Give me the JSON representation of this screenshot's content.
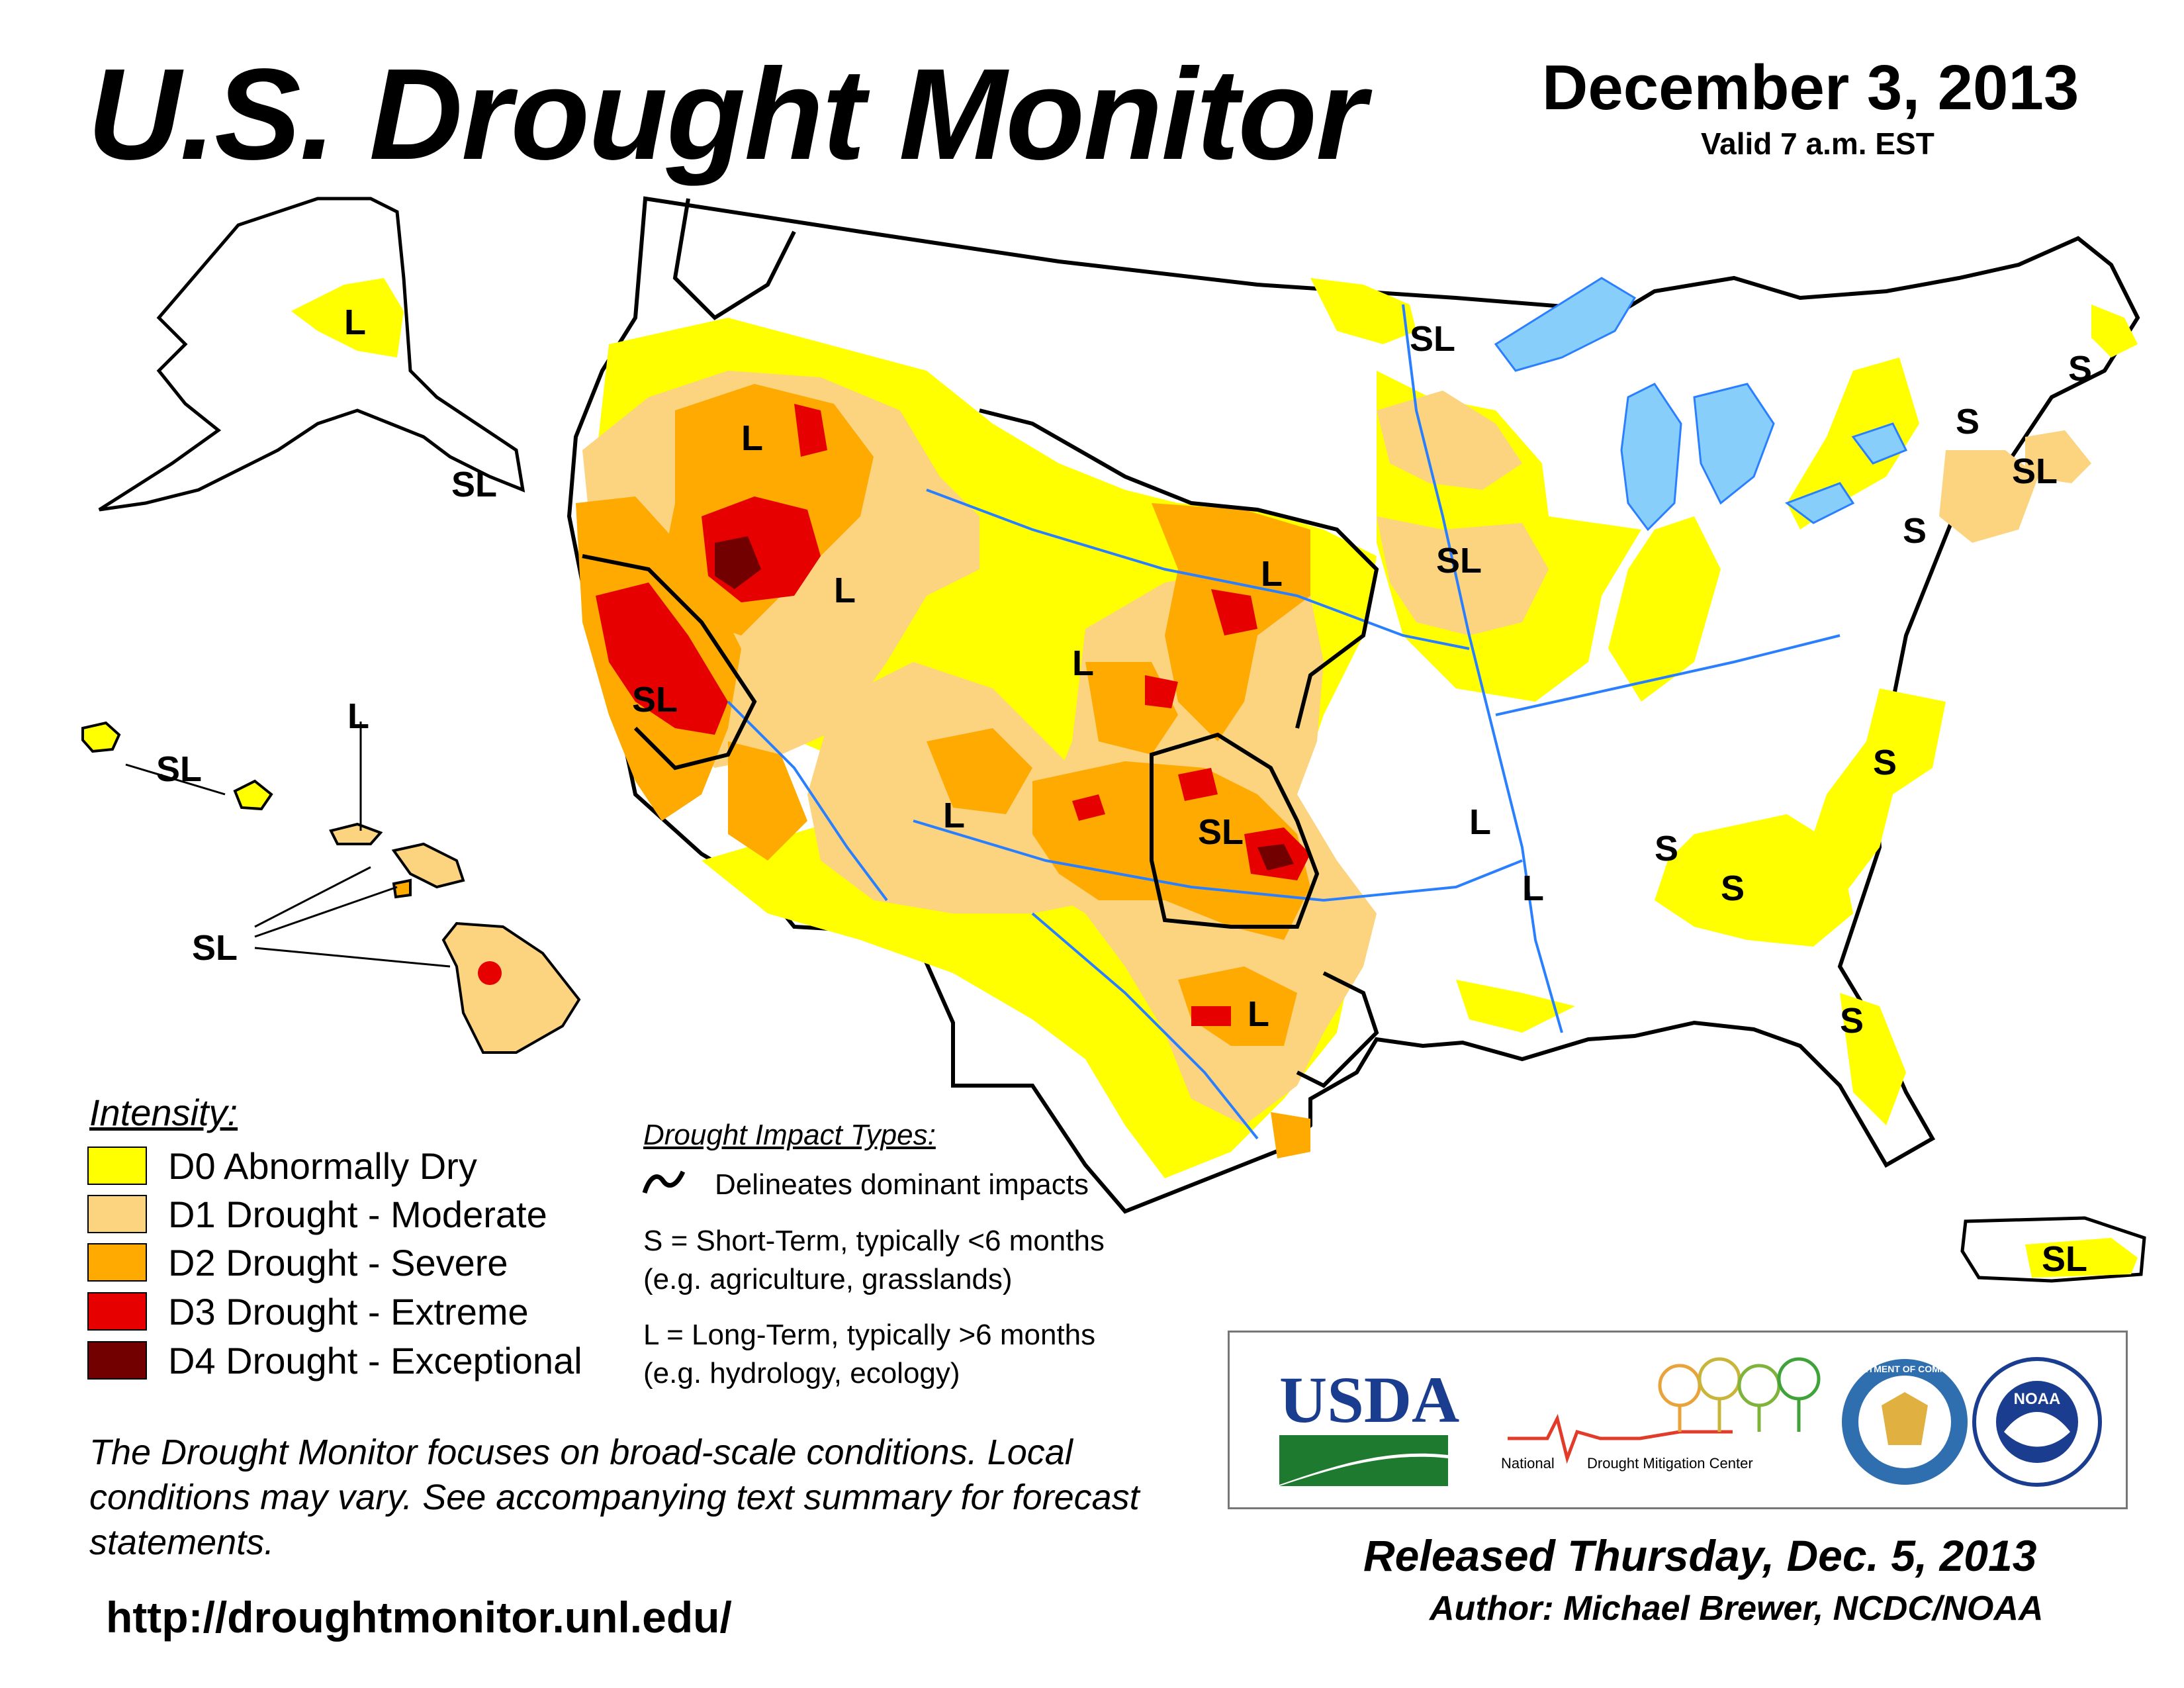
{
  "header": {
    "title": "U.S. Drought Monitor",
    "date": "December 3, 2013",
    "valid": "Valid 7 a.m. EST"
  },
  "map": {
    "impact_labels": [
      "L",
      "SL",
      "SL",
      "L",
      "L",
      "SL",
      "SL",
      "L",
      "L",
      "SL",
      "SL",
      "L",
      "L",
      "L",
      "L",
      "S",
      "S",
      "SL",
      "S",
      "S",
      "S",
      "S",
      "SL",
      "L",
      "S",
      "SL"
    ],
    "colors": {
      "D0": "#ffff00",
      "D1": "#fcd37f",
      "D2": "#ffaa00",
      "D3": "#e60000",
      "D4": "#730000",
      "water": "#87cefa",
      "rivers": "#2a7fff",
      "borders": "#000000",
      "counties": "#9a9a9a"
    }
  },
  "legend": {
    "title": "Intensity:",
    "items": [
      {
        "label": "D0 Abnormally Dry",
        "color": "#ffff00"
      },
      {
        "label": "D1 Drought - Moderate",
        "color": "#fcd37f"
      },
      {
        "label": "D2 Drought - Severe",
        "color": "#ffaa00"
      },
      {
        "label": "D3 Drought - Extreme",
        "color": "#e60000"
      },
      {
        "label": "D4 Drought - Exceptional",
        "color": "#730000"
      }
    ]
  },
  "impacts": {
    "title": "Drought Impact Types:",
    "delineates": "Delineates dominant impacts",
    "short_1": "S = Short-Term, typically <6 months",
    "short_2": "(e.g. agriculture, grasslands)",
    "long_1": "L = Long-Term, typically >6 months",
    "long_2": "(e.g. hydrology, ecology)"
  },
  "note": "The Drought Monitor focuses on broad-scale conditions. Local conditions may vary. See accompanying text summary for forecast statements.",
  "url": "http://droughtmonitor.unl.edu/",
  "logos": {
    "usda": "USDA",
    "ndmc": "National Drought Mitigation Center",
    "ndmc_part1": "National",
    "ndmc_part2": "Drought Mitigation Center",
    "commerce": "DEPARTMENT OF COMMERCE",
    "noaa": "NOAA"
  },
  "footer": {
    "released": "Released Thursday, Dec. 5, 2013",
    "author": "Author: Michael Brewer, NCDC/NOAA"
  }
}
